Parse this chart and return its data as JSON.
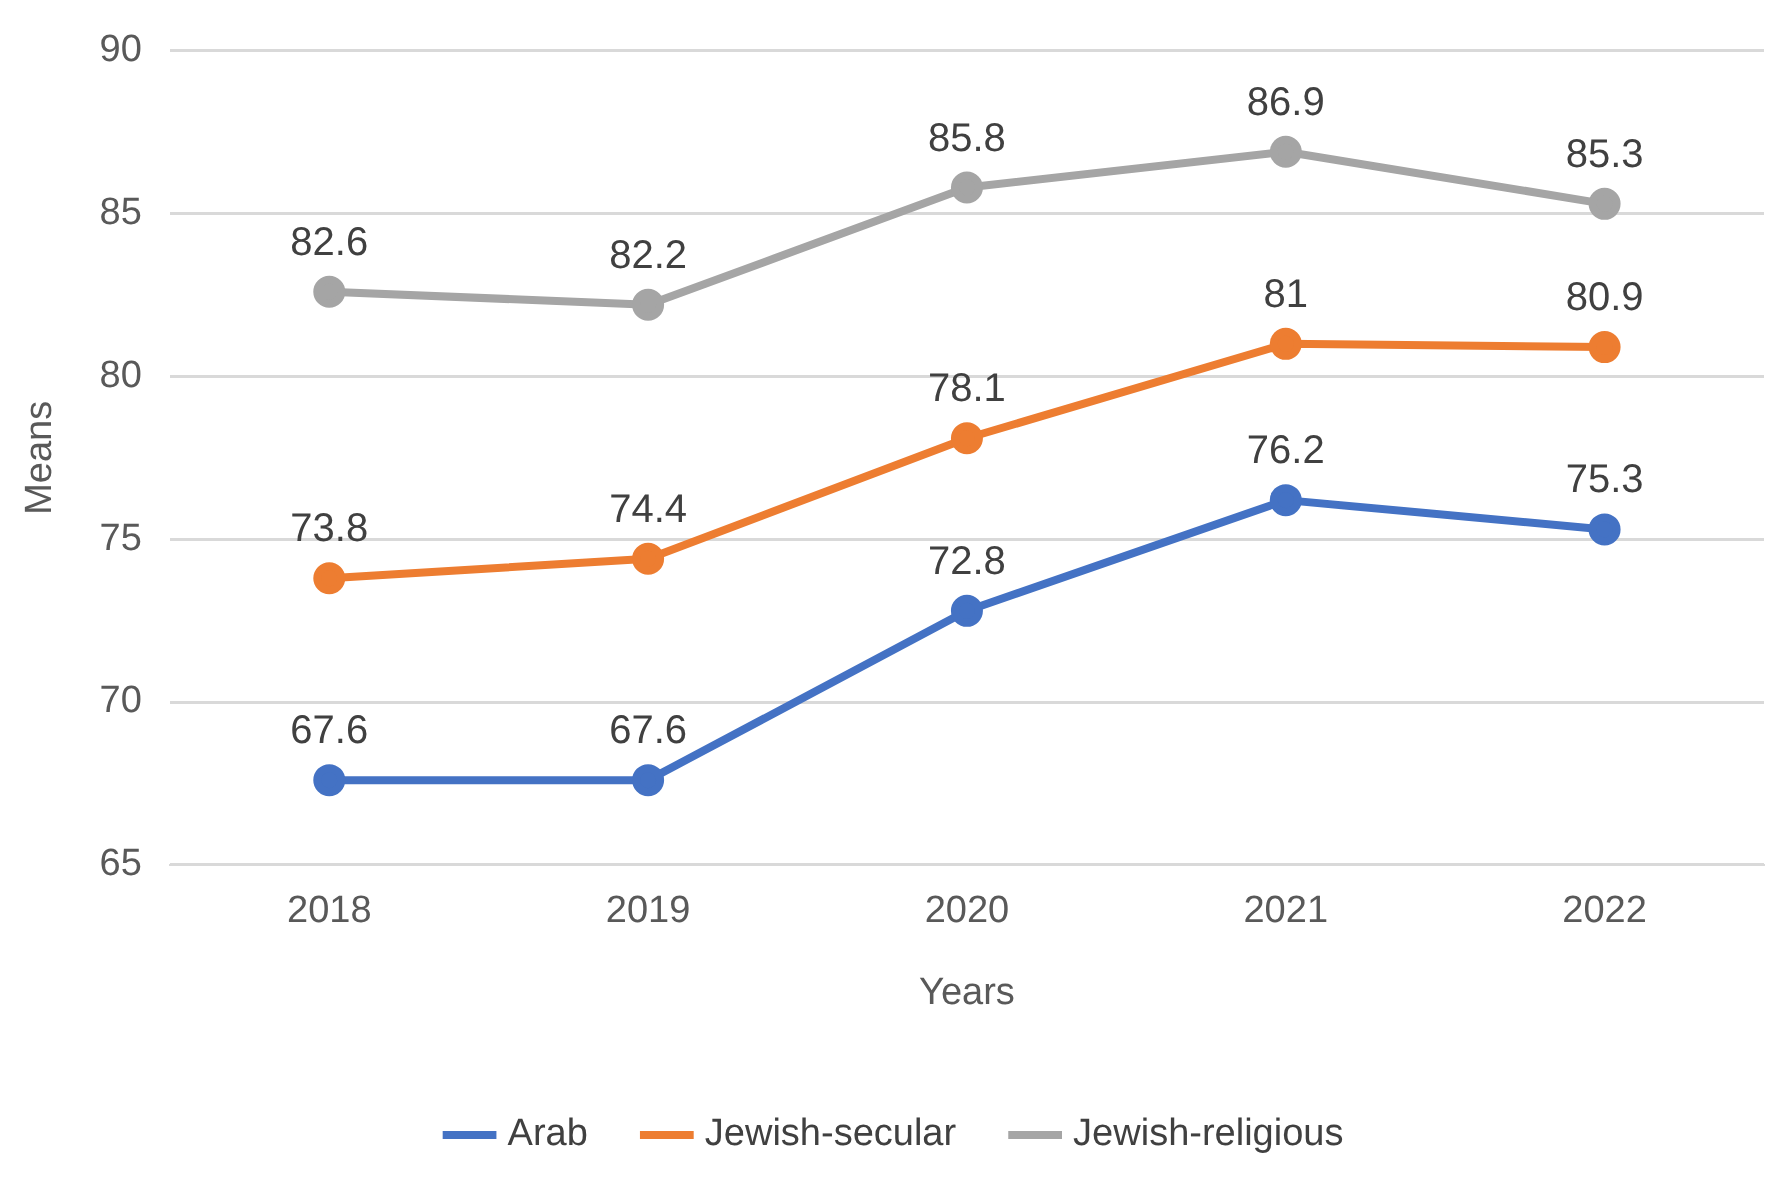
{
  "chart_data": {
    "type": "line",
    "xlabel": "Years",
    "ylabel": "Means",
    "categories": [
      "2018",
      "2019",
      "2020",
      "2021",
      "2022"
    ],
    "series": [
      {
        "name": "Arab",
        "color": "#4472c4",
        "values": [
          67.6,
          67.6,
          72.8,
          76.2,
          75.3
        ]
      },
      {
        "name": "Jewish-secular",
        "color": "#ed7d31",
        "values": [
          73.8,
          74.4,
          78.1,
          81,
          80.9
        ]
      },
      {
        "name": "Jewish-religious",
        "color": "#a5a5a5",
        "values": [
          82.6,
          82.2,
          85.8,
          86.9,
          85.3
        ]
      }
    ],
    "ylim": [
      65,
      90
    ],
    "yticks": [
      65,
      70,
      75,
      80,
      85,
      90
    ],
    "grid": "y",
    "legend": "bottom",
    "marker": "circle",
    "line_style": "solid",
    "data_labels": true
  }
}
